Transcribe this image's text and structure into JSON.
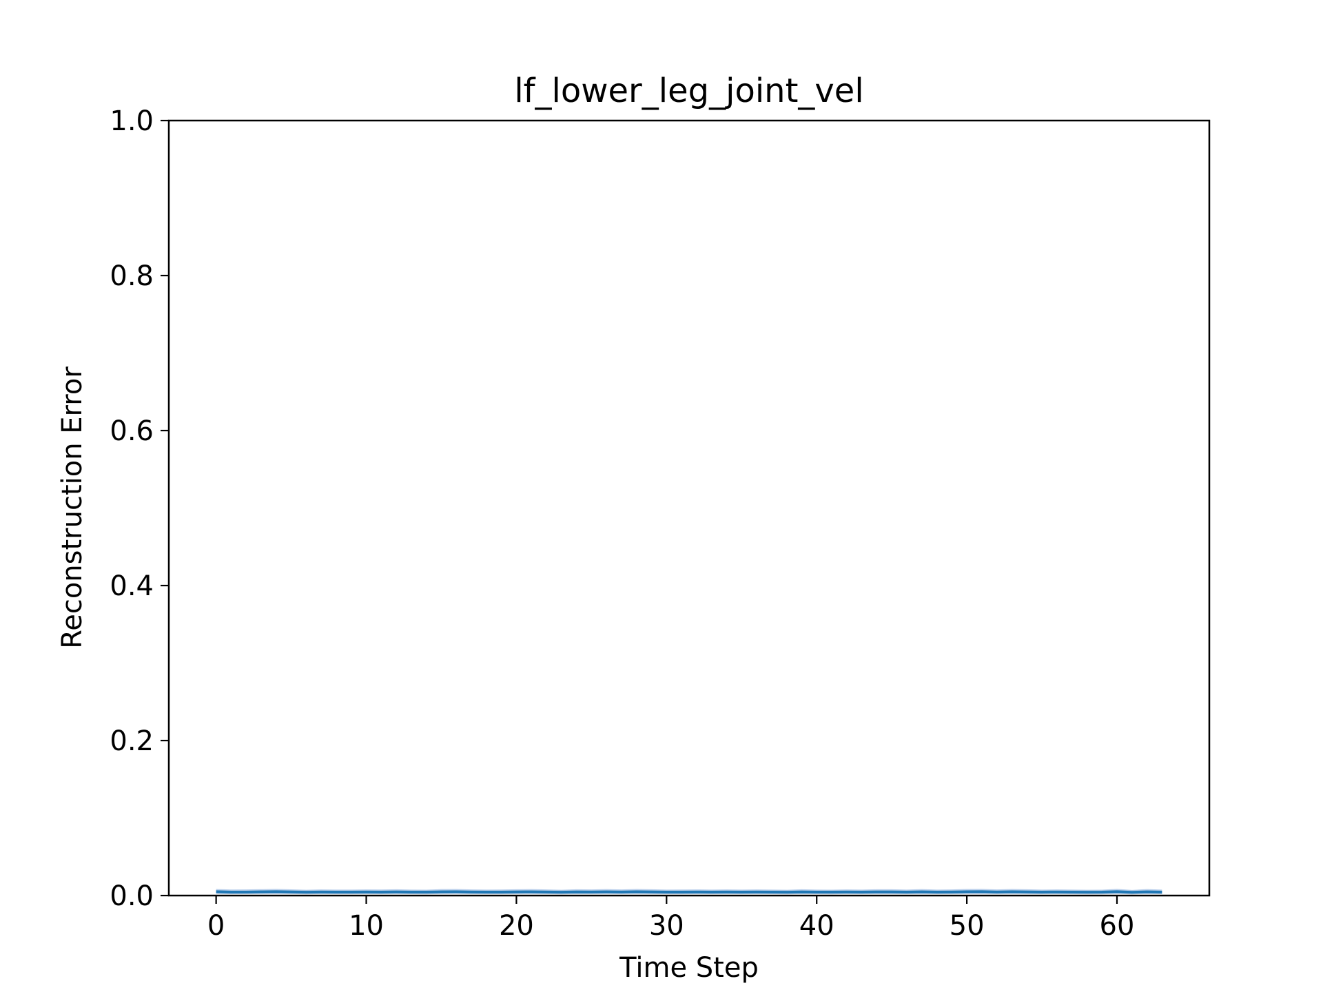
{
  "chart_data": {
    "type": "line",
    "title": "lf_lower_leg_joint_vel",
    "xlabel": "Time Step",
    "ylabel": "Reconstruction Error",
    "xlim": [
      -3.15,
      66.15
    ],
    "ylim": [
      0.0,
      1.0
    ],
    "x_ticks": [
      0,
      10,
      20,
      30,
      40,
      50,
      60
    ],
    "x_tick_labels": [
      "0",
      "10",
      "20",
      "30",
      "40",
      "50",
      "60"
    ],
    "y_ticks": [
      0.0,
      0.2,
      0.4,
      0.6,
      0.8,
      1.0
    ],
    "y_tick_labels": [
      "0.0",
      "0.2",
      "0.4",
      "0.6",
      "0.8",
      "1.0"
    ],
    "grid": false,
    "legend": "none",
    "colors": {
      "line": "#1f77b4",
      "band": "#aec7e8"
    },
    "series": [
      {
        "x": [
          0,
          1,
          2,
          3,
          4,
          5,
          6,
          7,
          8,
          9,
          10,
          11,
          12,
          13,
          14,
          15,
          16,
          17,
          18,
          19,
          20,
          21,
          22,
          23,
          24,
          25,
          26,
          27,
          28,
          29,
          30,
          31,
          32,
          33,
          34,
          35,
          36,
          37,
          38,
          39,
          40,
          41,
          42,
          43,
          44,
          45,
          46,
          47,
          48,
          49,
          50,
          51,
          52,
          53,
          54,
          55,
          56,
          57,
          58,
          59,
          60,
          61,
          62,
          63
        ],
        "values": [
          0.005,
          0.0045,
          0.0045,
          0.0048,
          0.005,
          0.0047,
          0.0043,
          0.0046,
          0.0045,
          0.0045,
          0.0046,
          0.0045,
          0.0047,
          0.0045,
          0.0044,
          0.0048,
          0.0049,
          0.0046,
          0.0045,
          0.0045,
          0.0047,
          0.0048,
          0.0046,
          0.0043,
          0.0047,
          0.0046,
          0.0048,
          0.0046,
          0.0049,
          0.0047,
          0.0045,
          0.0045,
          0.0046,
          0.0045,
          0.0046,
          0.0045,
          0.0046,
          0.0045,
          0.0043,
          0.0047,
          0.0045,
          0.0044,
          0.0046,
          0.0045,
          0.0047,
          0.0047,
          0.0045,
          0.0048,
          0.0045,
          0.0046,
          0.0049,
          0.005,
          0.0046,
          0.0049,
          0.0047,
          0.0045,
          0.0046,
          0.0045,
          0.0043,
          0.0044,
          0.005,
          0.0042,
          0.0048,
          0.0045
        ],
        "band_lower": [
          0.002,
          0.0018,
          0.0019,
          0.002,
          0.0021,
          0.0019,
          0.0017,
          0.0019,
          0.0018,
          0.0018,
          0.0019,
          0.0018,
          0.002,
          0.0018,
          0.0017,
          0.002,
          0.0021,
          0.0019,
          0.0018,
          0.0018,
          0.0019,
          0.002,
          0.0019,
          0.0017,
          0.0019,
          0.0019,
          0.002,
          0.0019,
          0.0021,
          0.0019,
          0.0018,
          0.0018,
          0.0019,
          0.0018,
          0.0019,
          0.0018,
          0.0019,
          0.0018,
          0.0017,
          0.0019,
          0.0018,
          0.0017,
          0.0019,
          0.0018,
          0.0019,
          0.0019,
          0.0018,
          0.002,
          0.0018,
          0.0019,
          0.0021,
          0.0021,
          0.0019,
          0.0021,
          0.0019,
          0.0018,
          0.0019,
          0.0018,
          0.0017,
          0.0017,
          0.0021,
          0.0016,
          0.002,
          0.0018
        ],
        "band_upper": [
          0.0085,
          0.0078,
          0.0079,
          0.0082,
          0.0086,
          0.008,
          0.0074,
          0.0079,
          0.0077,
          0.0077,
          0.0079,
          0.0078,
          0.0081,
          0.0077,
          0.0076,
          0.0083,
          0.0084,
          0.0079,
          0.0077,
          0.0078,
          0.0081,
          0.0083,
          0.0079,
          0.0074,
          0.0081,
          0.0079,
          0.0083,
          0.0079,
          0.0085,
          0.0081,
          0.0077,
          0.0078,
          0.0079,
          0.0077,
          0.0079,
          0.0077,
          0.0079,
          0.0077,
          0.0074,
          0.0081,
          0.0077,
          0.0076,
          0.0079,
          0.0077,
          0.0081,
          0.0081,
          0.0077,
          0.0083,
          0.0077,
          0.0079,
          0.0085,
          0.0086,
          0.0079,
          0.0085,
          0.0081,
          0.0077,
          0.0079,
          0.0077,
          0.0074,
          0.0076,
          0.0086,
          0.0072,
          0.0083,
          0.0077
        ]
      }
    ]
  }
}
